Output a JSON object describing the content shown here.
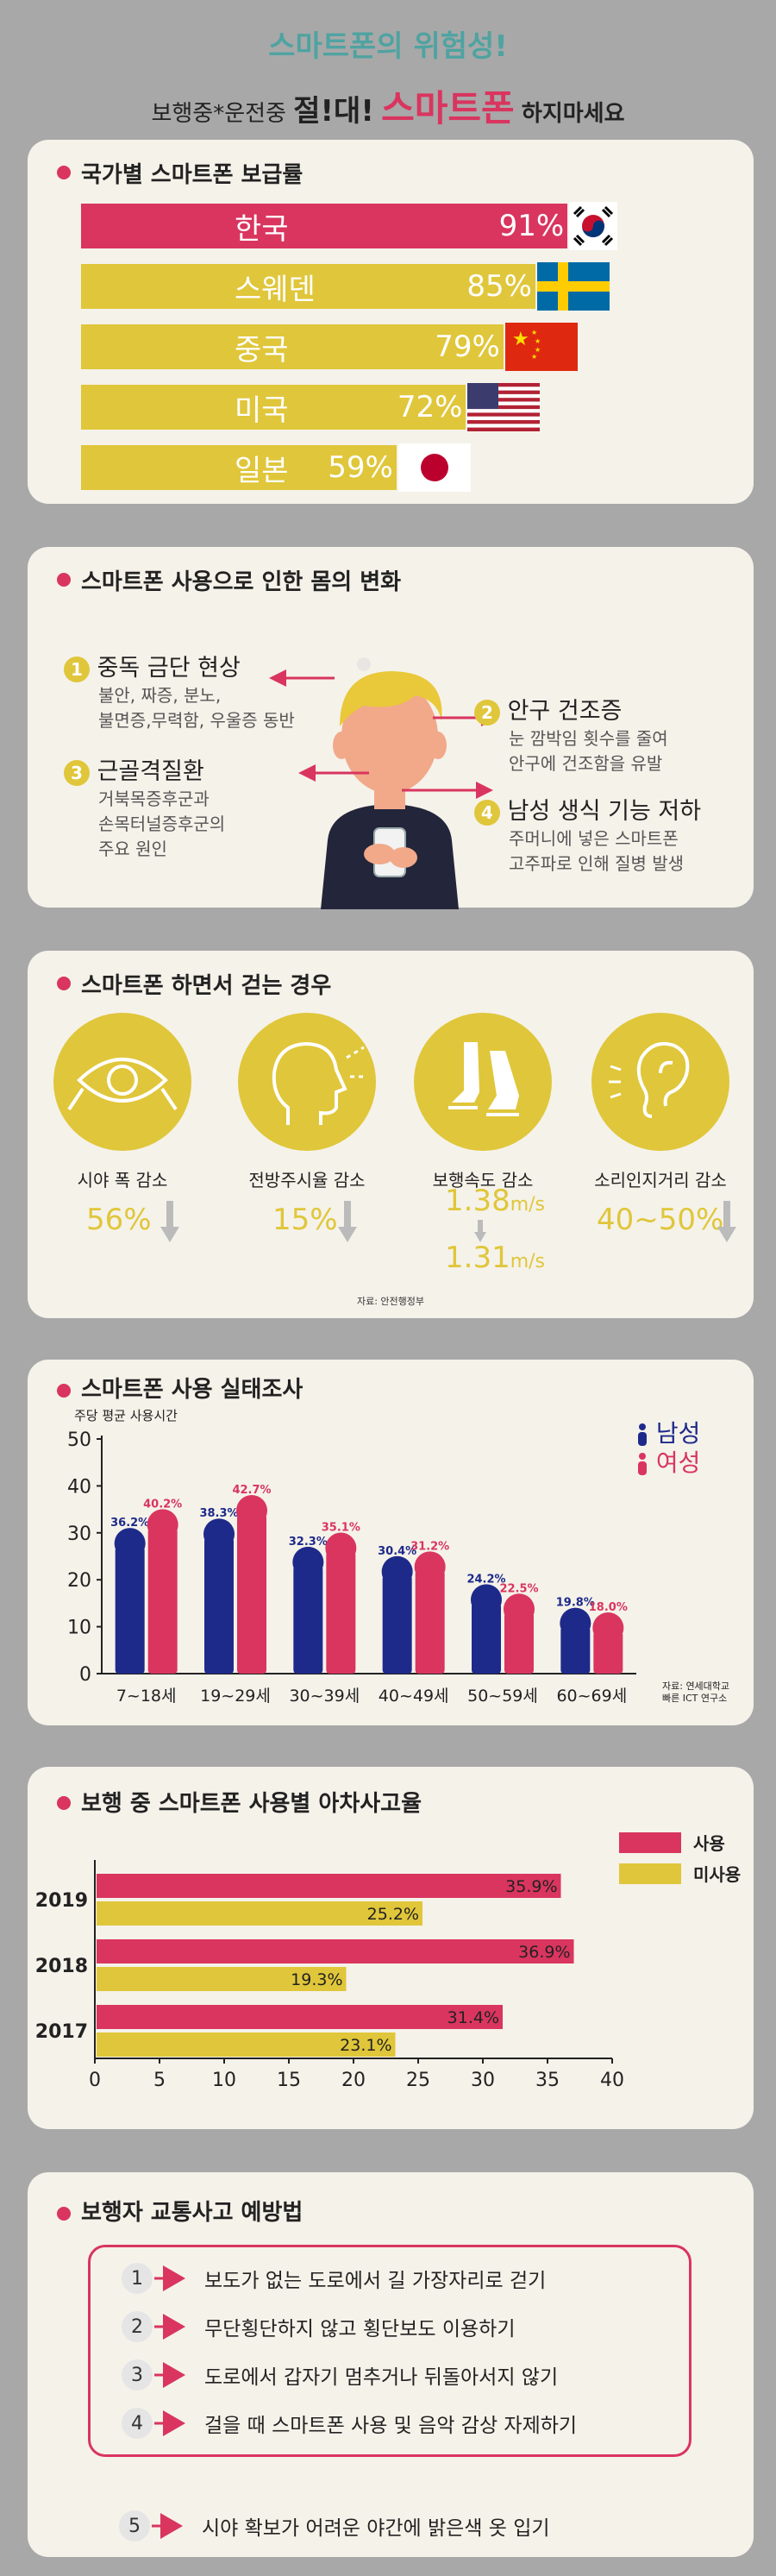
{
  "header": {
    "title": "스마트폰의 위험성!",
    "subtitle_prefix": "보행중*운전중",
    "subtitle_emph": "절!대!",
    "subtitle_red": "스마트폰",
    "subtitle_suffix": "하지마세요"
  },
  "colors": {
    "pink": "#d9355f",
    "yellow": "#e0c63a",
    "navy": "#1e2a8a",
    "teal": "#4fa3a1"
  },
  "penetration": {
    "title": "국가별 스마트폰 보급률",
    "items": [
      {
        "country": "한국",
        "value": 91,
        "label": "91%",
        "color": "#d9355f",
        "flag": "korea-flag-icon"
      },
      {
        "country": "스웨덴",
        "value": 85,
        "label": "85%",
        "color": "#e0c63a",
        "flag": "sweden-flag-icon"
      },
      {
        "country": "중국",
        "value": 79,
        "label": "79%",
        "color": "#e0c63a",
        "flag": "china-flag-icon"
      },
      {
        "country": "미국",
        "value": 72,
        "label": "72%",
        "color": "#e0c63a",
        "flag": "usa-flag-icon"
      },
      {
        "country": "일본",
        "value": 59,
        "label": "59%",
        "color": "#e0c63a",
        "flag": "japan-flag-icon"
      }
    ]
  },
  "body_changes": {
    "title": "스마트폰 사용으로 인한 몸의 변화",
    "items": [
      {
        "num": "1",
        "title": "중독 금단 현상",
        "desc": [
          "불안, 짜증, 분노,",
          "불면증,무력함, 우울증 동반"
        ]
      },
      {
        "num": "2",
        "title": "안구 건조증",
        "desc": [
          "눈 깜박임 횟수를 줄여",
          "안구에 건조함을 유발"
        ]
      },
      {
        "num": "3",
        "title": "근골격질환",
        "desc": [
          "거북목증후군과",
          "손목터널증후군의",
          "주요 원인"
        ]
      },
      {
        "num": "4",
        "title": "남성 생식 기능 저하",
        "desc": [
          "주머니에 넣은 스마트폰",
          "고주파로 인해 질병 발생"
        ]
      }
    ]
  },
  "walking": {
    "title": "스마트폰 하면서 걷는 경우",
    "items": [
      {
        "label": "시야 폭 감소",
        "value": "56%",
        "icon": "eye-icon"
      },
      {
        "label": "전방주시율 감소",
        "value": "15%",
        "icon": "head-icon"
      },
      {
        "label": "보행속도 감소",
        "value_from": "1.38",
        "value_to": "1.31",
        "unit": "m/s",
        "icon": "walking-feet-icon"
      },
      {
        "label": "소리인지거리 감소",
        "value": "40~50%",
        "icon": "ear-icon"
      }
    ],
    "source": "자료: 안전행정부"
  },
  "survey": {
    "title": "스마트폰 사용 실태조사",
    "source_line1": "자료: 연세대학교",
    "source_line2": "빠른 ICT 연구소"
  },
  "chart_data": [
    {
      "type": "bar",
      "ylabel": "주당 평균 사용시간",
      "categories": [
        "7~18세",
        "19~29세",
        "30~39세",
        "40~49세",
        "50~59세",
        "60~69세"
      ],
      "series": [
        {
          "name": "남성",
          "values": [
            27,
            29,
            23,
            21,
            15,
            10
          ],
          "labels": [
            "36.2%",
            "38.3%",
            "32.3%",
            "30.4%",
            "24.2%",
            "19.8%"
          ],
          "color": "#1e2a8a"
        },
        {
          "name": "여성",
          "values": [
            31,
            34,
            26,
            22,
            13,
            9
          ],
          "labels": [
            "40.2%",
            "42.7%",
            "35.1%",
            "31.2%",
            "22.5%",
            "18.0%"
          ],
          "color": "#d9355f"
        }
      ],
      "ylim": [
        0,
        50
      ],
      "yticks": [
        0,
        10,
        20,
        30,
        40,
        50
      ]
    },
    {
      "type": "bar",
      "orientation": "horizontal",
      "title": "보행 중 스마트폰 사용별 아차사고율",
      "categories": [
        "2019",
        "2018",
        "2017"
      ],
      "series": [
        {
          "name": "사용",
          "values": [
            35.9,
            36.9,
            31.4
          ],
          "labels": [
            "35.9%",
            "36.9%",
            "31.4%"
          ],
          "color": "#d9355f"
        },
        {
          "name": "미사용",
          "values": [
            25.2,
            19.3,
            23.1
          ],
          "labels": [
            "25.2%",
            "19.3%",
            "23.1%"
          ],
          "color": "#e0c63a"
        }
      ],
      "xlim": [
        0,
        40
      ],
      "xticks": [
        0,
        5,
        10,
        15,
        20,
        25,
        30,
        35,
        40
      ]
    }
  ],
  "prevention": {
    "title": "보행자 교통사고 예방법",
    "items": [
      {
        "num": "1",
        "text": "보도가 없는 도로에서 길 가장자리로 걷기"
      },
      {
        "num": "2",
        "text": "무단횡단하지 않고 횡단보도 이용하기"
      },
      {
        "num": "3",
        "text": "도로에서 갑자기 멈추거나 뒤돌아서지 않기"
      },
      {
        "num": "4",
        "text": "걸을 때 스마트폰 사용 및 음악 감상 자제하기"
      },
      {
        "num": "5",
        "text": "시야 확보가 어려운 야간에 밝은색 옷 입기"
      }
    ]
  }
}
